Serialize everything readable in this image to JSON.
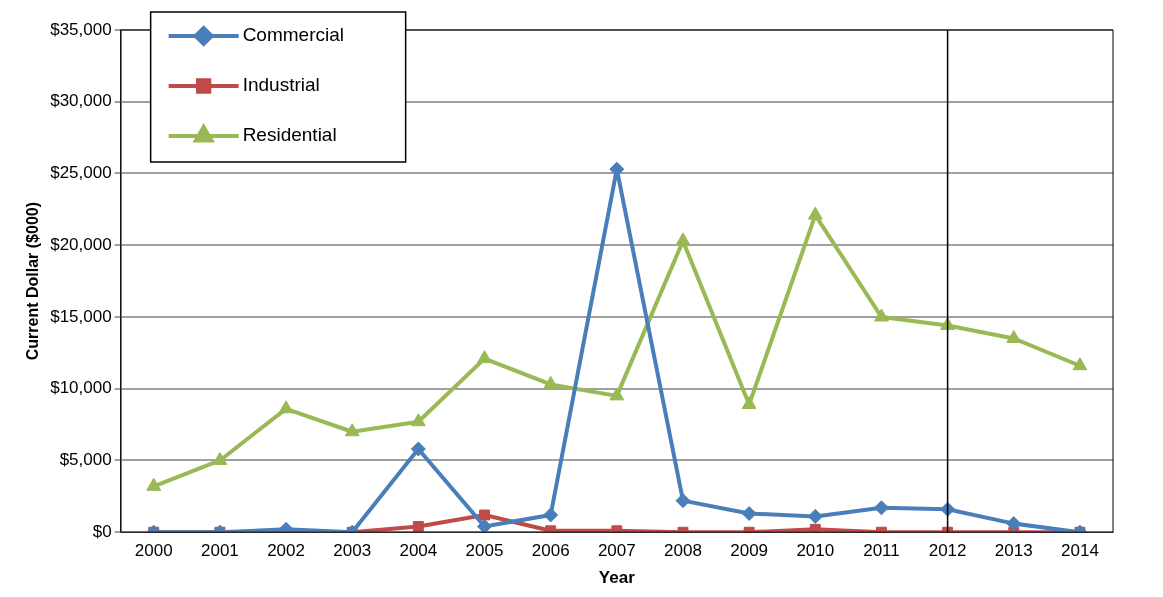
{
  "chart_data": {
    "type": "line",
    "xlabel": "Year",
    "ylabel": "Current Dollar ($000)",
    "categories": [
      "2000",
      "2001",
      "2002",
      "2003",
      "2004",
      "2005",
      "2006",
      "2007",
      "2008",
      "2009",
      "2010",
      "2011",
      "2012",
      "2013",
      "2014"
    ],
    "series": [
      {
        "name": "Commercial",
        "color": "#4a7ebb",
        "marker": "diamond",
        "values": [
          0,
          0,
          200,
          0,
          5800,
          400,
          1200,
          25300,
          2200,
          1300,
          1100,
          1700,
          1600,
          600,
          0
        ]
      },
      {
        "name": "Industrial",
        "color": "#be4b48",
        "marker": "square",
        "values": [
          0,
          0,
          0,
          0,
          400,
          1200,
          100,
          100,
          0,
          0,
          200,
          0,
          0,
          0,
          0
        ]
      },
      {
        "name": "Residential",
        "color": "#98b954",
        "marker": "triangle",
        "values": [
          3200,
          5000,
          8600,
          7000,
          7700,
          12100,
          10300,
          9500,
          20300,
          8900,
          22100,
          15000,
          14400,
          13500,
          11600
        ]
      }
    ],
    "ylim": [
      0,
      35000
    ],
    "yticks": [
      {
        "value": 0,
        "label": "$0"
      },
      {
        "value": 5000,
        "label": "$5,000"
      },
      {
        "value": 10000,
        "label": "$10,000"
      },
      {
        "value": 15000,
        "label": "$15,000"
      },
      {
        "value": 20000,
        "label": "$20,000"
      },
      {
        "value": 25000,
        "label": "$25,000"
      },
      {
        "value": 30000,
        "label": "$30,000"
      },
      {
        "value": 35000,
        "label": "$35,000"
      }
    ],
    "grid": "y",
    "legend": "top left",
    "ref_lines": [
      {
        "axis": "x",
        "value": "2012",
        "color": "#000000"
      }
    ]
  }
}
